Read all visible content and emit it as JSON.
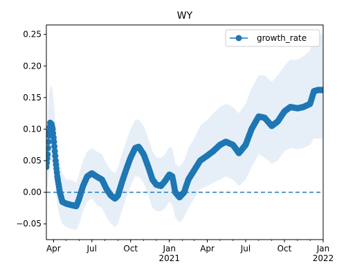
{
  "chart_data": {
    "type": "line",
    "title": "WY",
    "xlabel": "",
    "ylabel": "",
    "x_axis": {
      "kind": "date",
      "range": [
        "2020-03-15",
        "2022-01-01"
      ],
      "ticks": [
        {
          "date": "2020-04-01",
          "label": "Apr",
          "sublabel": ""
        },
        {
          "date": "2020-07-01",
          "label": "Jul",
          "sublabel": ""
        },
        {
          "date": "2020-10-01",
          "label": "Oct",
          "sublabel": ""
        },
        {
          "date": "2021-01-01",
          "label": "Jan",
          "sublabel": "2021"
        },
        {
          "date": "2021-04-01",
          "label": "Apr",
          "sublabel": ""
        },
        {
          "date": "2021-07-01",
          "label": "Jul",
          "sublabel": ""
        },
        {
          "date": "2021-10-01",
          "label": "Oct",
          "sublabel": ""
        },
        {
          "date": "2022-01-01",
          "label": "Jan",
          "sublabel": "2022"
        }
      ]
    },
    "ylim": [
      -0.075,
      0.265
    ],
    "yticks": [
      {
        "value": -0.05,
        "label": "−0.05"
      },
      {
        "value": 0.0,
        "label": "0.00"
      },
      {
        "value": 0.05,
        "label": "0.05"
      },
      {
        "value": 0.1,
        "label": "0.10"
      },
      {
        "value": 0.15,
        "label": "0.15"
      },
      {
        "value": 0.2,
        "label": "0.20"
      },
      {
        "value": 0.25,
        "label": "0.25"
      }
    ],
    "reference_line": {
      "y": 0.0,
      "style": "dashed",
      "color": "#1f77b4"
    },
    "legend": {
      "position": "top-right",
      "entries": [
        "growth_rate"
      ]
    },
    "grid": false,
    "series": [
      {
        "name": "growth_rate",
        "color": "#1f77b4",
        "band_color": "#dce8f4",
        "points": [
          {
            "x": "2020-03-15",
            "y": 0.04,
            "lo": 0.0,
            "hi": 0.08
          },
          {
            "x": "2020-03-18",
            "y": 0.06,
            "lo": 0.01,
            "hi": 0.12
          },
          {
            "x": "2020-03-21",
            "y": 0.09,
            "lo": 0.03,
            "hi": 0.155
          },
          {
            "x": "2020-03-24",
            "y": 0.11,
            "lo": 0.05,
            "hi": 0.165
          },
          {
            "x": "2020-03-27",
            "y": 0.108,
            "lo": 0.05,
            "hi": 0.17
          },
          {
            "x": "2020-03-30",
            "y": 0.1,
            "lo": 0.04,
            "hi": 0.16
          },
          {
            "x": "2020-04-02",
            "y": 0.08,
            "lo": 0.03,
            "hi": 0.14
          },
          {
            "x": "2020-04-06",
            "y": 0.05,
            "lo": 0.005,
            "hi": 0.1
          },
          {
            "x": "2020-04-10",
            "y": 0.025,
            "lo": -0.02,
            "hi": 0.07
          },
          {
            "x": "2020-04-16",
            "y": 0.0,
            "lo": -0.04,
            "hi": 0.045
          },
          {
            "x": "2020-04-22",
            "y": -0.015,
            "lo": -0.05,
            "hi": 0.03
          },
          {
            "x": "2020-05-01",
            "y": -0.018,
            "lo": -0.055,
            "hi": 0.02
          },
          {
            "x": "2020-05-12",
            "y": -0.02,
            "lo": -0.058,
            "hi": 0.02
          },
          {
            "x": "2020-05-25",
            "y": -0.022,
            "lo": -0.06,
            "hi": 0.015
          },
          {
            "x": "2020-06-01",
            "y": -0.01,
            "lo": -0.05,
            "hi": 0.03
          },
          {
            "x": "2020-06-10",
            "y": 0.01,
            "lo": -0.03,
            "hi": 0.05
          },
          {
            "x": "2020-06-20",
            "y": 0.025,
            "lo": -0.015,
            "hi": 0.065
          },
          {
            "x": "2020-07-01",
            "y": 0.03,
            "lo": -0.01,
            "hi": 0.07
          },
          {
            "x": "2020-07-12",
            "y": 0.025,
            "lo": -0.02,
            "hi": 0.065
          },
          {
            "x": "2020-07-25",
            "y": 0.02,
            "lo": -0.025,
            "hi": 0.06
          },
          {
            "x": "2020-08-05",
            "y": 0.005,
            "lo": -0.04,
            "hi": 0.045
          },
          {
            "x": "2020-08-15",
            "y": -0.005,
            "lo": -0.05,
            "hi": 0.035
          },
          {
            "x": "2020-08-25",
            "y": -0.01,
            "lo": -0.055,
            "hi": 0.03
          },
          {
            "x": "2020-09-01",
            "y": -0.005,
            "lo": -0.05,
            "hi": 0.04
          },
          {
            "x": "2020-09-10",
            "y": 0.015,
            "lo": -0.03,
            "hi": 0.06
          },
          {
            "x": "2020-09-20",
            "y": 0.035,
            "lo": -0.01,
            "hi": 0.08
          },
          {
            "x": "2020-10-01",
            "y": 0.055,
            "lo": 0.01,
            "hi": 0.1
          },
          {
            "x": "2020-10-12",
            "y": 0.07,
            "lo": 0.025,
            "hi": 0.115
          },
          {
            "x": "2020-10-20",
            "y": 0.072,
            "lo": 0.025,
            "hi": 0.115
          },
          {
            "x": "2020-11-01",
            "y": 0.06,
            "lo": 0.015,
            "hi": 0.105
          },
          {
            "x": "2020-11-12",
            "y": 0.04,
            "lo": -0.005,
            "hi": 0.085
          },
          {
            "x": "2020-11-22",
            "y": 0.02,
            "lo": -0.025,
            "hi": 0.065
          },
          {
            "x": "2020-12-01",
            "y": 0.012,
            "lo": -0.03,
            "hi": 0.055
          },
          {
            "x": "2020-12-12",
            "y": 0.01,
            "lo": -0.03,
            "hi": 0.055
          },
          {
            "x": "2020-12-22",
            "y": 0.018,
            "lo": -0.025,
            "hi": 0.06
          },
          {
            "x": "2021-01-01",
            "y": 0.028,
            "lo": -0.015,
            "hi": 0.072
          },
          {
            "x": "2021-01-08",
            "y": 0.025,
            "lo": -0.02,
            "hi": 0.07
          },
          {
            "x": "2021-01-15",
            "y": 0.0,
            "lo": -0.04,
            "hi": 0.045
          },
          {
            "x": "2021-01-25",
            "y": -0.008,
            "lo": -0.048,
            "hi": 0.04
          },
          {
            "x": "2021-02-05",
            "y": 0.0,
            "lo": -0.04,
            "hi": 0.05
          },
          {
            "x": "2021-02-15",
            "y": 0.02,
            "lo": -0.025,
            "hi": 0.07
          },
          {
            "x": "2021-03-01",
            "y": 0.035,
            "lo": -0.01,
            "hi": 0.085
          },
          {
            "x": "2021-03-15",
            "y": 0.05,
            "lo": 0.005,
            "hi": 0.105
          },
          {
            "x": "2021-04-01",
            "y": 0.058,
            "lo": 0.01,
            "hi": 0.115
          },
          {
            "x": "2021-04-15",
            "y": 0.065,
            "lo": 0.015,
            "hi": 0.125
          },
          {
            "x": "2021-05-01",
            "y": 0.075,
            "lo": 0.02,
            "hi": 0.135
          },
          {
            "x": "2021-05-15",
            "y": 0.08,
            "lo": 0.025,
            "hi": 0.14
          },
          {
            "x": "2021-06-01",
            "y": 0.075,
            "lo": 0.02,
            "hi": 0.135
          },
          {
            "x": "2021-06-15",
            "y": 0.062,
            "lo": 0.01,
            "hi": 0.125
          },
          {
            "x": "2021-07-01",
            "y": 0.075,
            "lo": 0.02,
            "hi": 0.14
          },
          {
            "x": "2021-07-15",
            "y": 0.1,
            "lo": 0.04,
            "hi": 0.165
          },
          {
            "x": "2021-08-01",
            "y": 0.12,
            "lo": 0.06,
            "hi": 0.185
          },
          {
            "x": "2021-08-15",
            "y": 0.118,
            "lo": 0.055,
            "hi": 0.185
          },
          {
            "x": "2021-09-01",
            "y": 0.105,
            "lo": 0.045,
            "hi": 0.175
          },
          {
            "x": "2021-09-15",
            "y": 0.112,
            "lo": 0.05,
            "hi": 0.185
          },
          {
            "x": "2021-10-01",
            "y": 0.128,
            "lo": 0.065,
            "hi": 0.2
          },
          {
            "x": "2021-10-15",
            "y": 0.135,
            "lo": 0.07,
            "hi": 0.21
          },
          {
            "x": "2021-11-01",
            "y": 0.133,
            "lo": 0.068,
            "hi": 0.21
          },
          {
            "x": "2021-11-15",
            "y": 0.135,
            "lo": 0.07,
            "hi": 0.215
          },
          {
            "x": "2021-12-01",
            "y": 0.14,
            "lo": 0.075,
            "hi": 0.225
          },
          {
            "x": "2021-12-10",
            "y": 0.16,
            "lo": 0.085,
            "hi": 0.245
          },
          {
            "x": "2021-12-20",
            "y": 0.162,
            "lo": 0.085,
            "hi": 0.25
          },
          {
            "x": "2022-01-01",
            "y": 0.162,
            "lo": 0.085,
            "hi": 0.25
          }
        ]
      }
    ]
  }
}
